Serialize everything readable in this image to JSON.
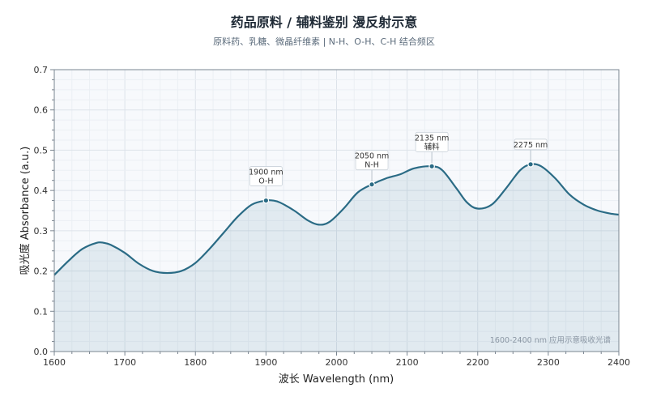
{
  "chart_data": {
    "type": "line",
    "title": "药品原料 / 辅料鉴别  漫反射示意",
    "subtitle": "原料药、乳糖、微晶纤维素 | N-H、O-H、C-H 结合频区",
    "xlabel": "波长 Wavelength (nm)",
    "ylabel": "吸光度 Absorbance (a.u.)",
    "xlim": [
      1600,
      2400
    ],
    "ylim": [
      0,
      0.7
    ],
    "x_ticks": [
      1600,
      1700,
      1800,
      1900,
      2000,
      2100,
      2200,
      2300,
      2400
    ],
    "y_ticks": [
      "0.0",
      "0.1",
      "0.2",
      "0.3",
      "0.4",
      "0.5",
      "0.6",
      "0.7"
    ],
    "grid": true,
    "area_fill": true,
    "series": [
      {
        "x": [
          1600,
          1620,
          1640,
          1660,
          1670,
          1680,
          1700,
          1720,
          1740,
          1760,
          1780,
          1800,
          1820,
          1840,
          1860,
          1880,
          1900,
          1910,
          1920,
          1940,
          1960,
          1975,
          1990,
          2010,
          2030,
          2050,
          2070,
          2090,
          2110,
          2135,
          2150,
          2170,
          2185,
          2200,
          2220,
          2240,
          2260,
          2275,
          2290,
          2310,
          2330,
          2350,
          2370,
          2390,
          2400
        ],
        "y": [
          0.19,
          0.225,
          0.255,
          0.27,
          0.27,
          0.265,
          0.245,
          0.218,
          0.2,
          0.195,
          0.2,
          0.22,
          0.255,
          0.295,
          0.335,
          0.365,
          0.375,
          0.375,
          0.37,
          0.35,
          0.325,
          0.315,
          0.322,
          0.355,
          0.395,
          0.415,
          0.43,
          0.44,
          0.455,
          0.46,
          0.45,
          0.405,
          0.37,
          0.355,
          0.365,
          0.405,
          0.45,
          0.465,
          0.46,
          0.43,
          0.39,
          0.365,
          0.35,
          0.342,
          0.34
        ],
        "color": "#2a6b85"
      }
    ],
    "annotations": [
      {
        "x": 1900,
        "y": 0.375,
        "label": "1900 nm",
        "sub": "O-H"
      },
      {
        "x": 2050,
        "y": 0.415,
        "label": "2050 nm",
        "sub": "N-H"
      },
      {
        "x": 2135,
        "y": 0.46,
        "label": "2135 nm",
        "sub": "辅料"
      },
      {
        "x": 2275,
        "y": 0.465,
        "label": "2275 nm",
        "sub": ""
      }
    ],
    "note": "1600-2400 nm 应用示意吸收光谱"
  }
}
